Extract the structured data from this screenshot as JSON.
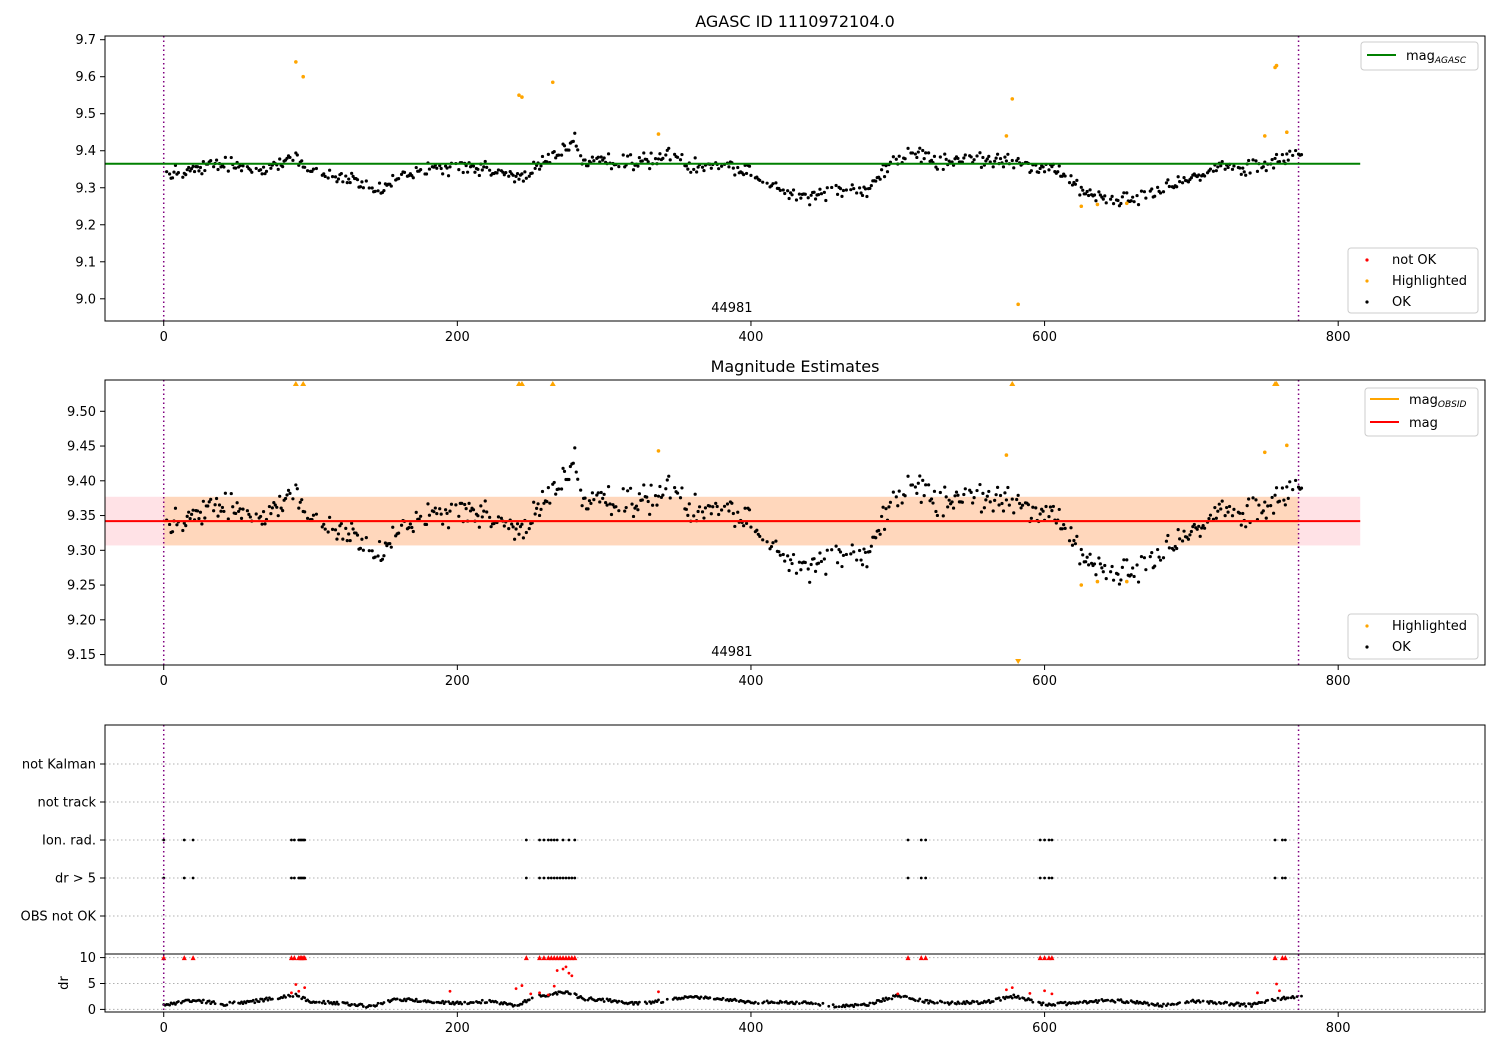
{
  "chart_data": [
    {
      "type": "scatter",
      "title": "AGASC ID 1110972104.0",
      "annotation": "44981",
      "xlim": [
        -40,
        900
      ],
      "ylim": [
        8.94,
        9.71
      ],
      "xticks": [
        0,
        200,
        400,
        600,
        800
      ],
      "yticks": [
        9.0,
        9.1,
        9.2,
        9.3,
        9.4,
        9.5,
        9.6,
        9.7
      ],
      "ytick_labels": [
        "9.0",
        "9.1",
        "9.2",
        "9.3",
        "9.4",
        "9.5",
        "9.6",
        "9.7"
      ],
      "vlines": [
        0,
        773
      ],
      "hline": {
        "name": "mag_AGASC",
        "value": 9.365,
        "x_range": [
          -40,
          815
        ],
        "color": "#008000"
      },
      "legend_lines": [
        {
          "name": "mag",
          "sub": "AGASC",
          "color": "#008000"
        }
      ],
      "legend_points": [
        {
          "name": "not OK",
          "color": "#ff0000"
        },
        {
          "name": "Highlighted",
          "color": "#ffa500"
        },
        {
          "name": "OK",
          "color": "#000000"
        }
      ],
      "highlighted_points": [
        [
          90,
          9.64
        ],
        [
          95,
          9.6
        ],
        [
          242,
          9.55
        ],
        [
          244,
          9.545
        ],
        [
          265,
          9.585
        ],
        [
          337,
          9.445
        ],
        [
          574,
          9.44
        ],
        [
          578,
          9.54
        ],
        [
          582,
          8.985
        ],
        [
          625,
          9.25
        ],
        [
          636,
          9.255
        ],
        [
          656,
          9.258
        ],
        [
          750,
          9.44
        ],
        [
          757,
          9.625
        ],
        [
          758,
          9.63
        ],
        [
          765,
          9.45
        ]
      ],
      "ok_trend": [
        [
          0,
          9.33
        ],
        [
          20,
          9.35
        ],
        [
          40,
          9.365
        ],
        [
          60,
          9.35
        ],
        [
          80,
          9.365
        ],
        [
          90,
          9.385
        ],
        [
          100,
          9.345
        ],
        [
          110,
          9.335
        ],
        [
          130,
          9.32
        ],
        [
          145,
          9.295
        ],
        [
          160,
          9.325
        ],
        [
          180,
          9.35
        ],
        [
          200,
          9.355
        ],
        [
          220,
          9.35
        ],
        [
          235,
          9.33
        ],
        [
          250,
          9.34
        ],
        [
          258,
          9.37
        ],
        [
          270,
          9.4
        ],
        [
          280,
          9.43
        ],
        [
          285,
          9.37
        ],
        [
          320,
          9.37
        ],
        [
          335,
          9.375
        ],
        [
          345,
          9.39
        ],
        [
          360,
          9.36
        ],
        [
          380,
          9.365
        ],
        [
          400,
          9.345
        ],
        [
          415,
          9.31
        ],
        [
          425,
          9.28
        ],
        [
          440,
          9.275
        ],
        [
          460,
          9.295
        ],
        [
          480,
          9.29
        ],
        [
          495,
          9.37
        ],
        [
          510,
          9.4
        ],
        [
          525,
          9.37
        ],
        [
          550,
          9.375
        ],
        [
          575,
          9.375
        ],
        [
          590,
          9.36
        ],
        [
          605,
          9.35
        ],
        [
          620,
          9.315
        ],
        [
          630,
          9.28
        ],
        [
          650,
          9.27
        ],
        [
          670,
          9.28
        ],
        [
          685,
          9.31
        ],
        [
          700,
          9.33
        ],
        [
          720,
          9.35
        ],
        [
          745,
          9.355
        ],
        [
          765,
          9.38
        ],
        [
          775,
          9.39
        ]
      ]
    },
    {
      "type": "scatter",
      "title": "Magnitude Estimates",
      "annotation": "44981",
      "xlim": [
        -40,
        900
      ],
      "ylim": [
        9.135,
        9.545
      ],
      "xticks": [
        0,
        200,
        400,
        600,
        800
      ],
      "yticks": [
        9.15,
        9.2,
        9.25,
        9.3,
        9.35,
        9.4,
        9.45,
        9.5
      ],
      "ytick_labels": [
        "9.15",
        "9.20",
        "9.25",
        "9.30",
        "9.35",
        "9.40",
        "9.45",
        "9.50"
      ],
      "vlines": [
        0,
        773
      ],
      "mag": {
        "value": 9.342,
        "band": [
          9.307,
          9.377
        ],
        "x_range": [
          -40,
          815
        ],
        "color": "#ff0000"
      },
      "mag_obsid": {
        "value": 9.342,
        "band": [
          9.307,
          9.377
        ],
        "x_range": [
          0,
          773
        ],
        "color": "#ffa500"
      },
      "legend_lines": [
        {
          "name": "mag",
          "sub": "OBSID",
          "color": "#ffa500"
        },
        {
          "name": "mag",
          "sub": "",
          "color": "#ff0000"
        }
      ],
      "legend_points": [
        {
          "name": "Highlighted",
          "color": "#ffa500"
        },
        {
          "name": "OK",
          "color": "#000000"
        }
      ],
      "highlighted_points": [
        [
          337,
          9.443
        ],
        [
          574,
          9.437
        ],
        [
          625,
          9.25
        ],
        [
          636,
          9.255
        ],
        [
          656,
          9.255
        ],
        [
          750,
          9.441
        ],
        [
          765,
          9.451
        ]
      ],
      "offscale_high": [
        90,
        95,
        242,
        244,
        265,
        578,
        757,
        758
      ],
      "offscale_low": [
        582
      ]
    },
    {
      "type": "scatter",
      "xlim": [
        -40,
        900
      ],
      "xticks": [
        0,
        200,
        400,
        600,
        800
      ],
      "vlines": [
        0,
        773
      ],
      "flag_rows": [
        "not Kalman",
        "not track",
        "Ion. rad.",
        "dr > 5",
        "OBS not OK"
      ],
      "ion_rad_x": [
        0,
        14,
        20,
        87,
        89,
        92,
        93,
        94,
        95,
        96,
        247,
        256,
        259,
        262,
        264,
        266,
        268,
        272,
        276,
        280,
        507,
        516,
        519,
        597,
        600,
        603,
        605,
        757,
        762,
        764
      ],
      "dr_gt5_x": [
        0,
        14,
        20,
        87,
        89,
        92,
        93,
        94,
        95,
        96,
        247,
        256,
        259,
        262,
        264,
        266,
        268,
        270,
        272,
        274,
        276,
        278,
        280,
        507,
        516,
        519,
        597,
        600,
        603,
        605,
        757,
        762,
        764
      ],
      "dr": {
        "ylabel": "dr",
        "ylim": [
          -0.5,
          10.5
        ],
        "yticks": [
          0,
          5,
          10
        ],
        "clip": 10,
        "clipped_x": [
          0,
          14,
          20,
          87,
          89,
          92,
          93,
          94,
          95,
          96,
          247,
          256,
          259,
          262,
          264,
          266,
          268,
          270,
          272,
          274,
          276,
          278,
          280,
          507,
          516,
          519,
          597,
          600,
          603,
          605,
          757,
          762,
          764
        ],
        "red_points": [
          [
            87,
            3.2
          ],
          [
            90,
            4.8
          ],
          [
            92,
            3.5
          ],
          [
            96,
            4.2
          ],
          [
            195,
            3.5
          ],
          [
            240,
            4.0
          ],
          [
            244,
            4.6
          ],
          [
            250,
            3.0
          ],
          [
            256,
            3.2
          ],
          [
            262,
            2.8
          ],
          [
            266,
            4.5
          ],
          [
            268,
            7.5
          ],
          [
            272,
            7.8
          ],
          [
            274,
            8.2
          ],
          [
            276,
            7.0
          ],
          [
            278,
            6.5
          ],
          [
            337,
            3.4
          ],
          [
            500,
            3.0
          ],
          [
            574,
            3.8
          ],
          [
            578,
            4.2
          ],
          [
            590,
            3.1
          ],
          [
            600,
            3.6
          ],
          [
            605,
            3.0
          ],
          [
            745,
            3.2
          ],
          [
            758,
            4.9
          ],
          [
            760,
            3.6
          ]
        ],
        "trend": [
          [
            0,
            0.8
          ],
          [
            20,
            1.8
          ],
          [
            40,
            1.0
          ],
          [
            60,
            1.5
          ],
          [
            80,
            2.4
          ],
          [
            90,
            2.8
          ],
          [
            100,
            1.6
          ],
          [
            120,
            1.2
          ],
          [
            140,
            0.6
          ],
          [
            160,
            2.0
          ],
          [
            180,
            1.5
          ],
          [
            200,
            1.2
          ],
          [
            220,
            1.6
          ],
          [
            240,
            0.8
          ],
          [
            255,
            2.6
          ],
          [
            275,
            3.4
          ],
          [
            285,
            2.1
          ],
          [
            300,
            1.8
          ],
          [
            320,
            1.2
          ],
          [
            340,
            1.6
          ],
          [
            360,
            2.4
          ],
          [
            380,
            2.0
          ],
          [
            400,
            1.3
          ],
          [
            420,
            1.4
          ],
          [
            440,
            1.2
          ],
          [
            460,
            0.6
          ],
          [
            480,
            1.0
          ],
          [
            500,
            2.6
          ],
          [
            520,
            1.5
          ],
          [
            540,
            1.2
          ],
          [
            560,
            1.4
          ],
          [
            580,
            2.6
          ],
          [
            600,
            1.0
          ],
          [
            620,
            1.2
          ],
          [
            640,
            1.7
          ],
          [
            660,
            1.5
          ],
          [
            680,
            0.8
          ],
          [
            700,
            1.6
          ],
          [
            720,
            1.2
          ],
          [
            740,
            0.8
          ],
          [
            760,
            2.0
          ],
          [
            775,
            2.7
          ]
        ]
      }
    }
  ]
}
